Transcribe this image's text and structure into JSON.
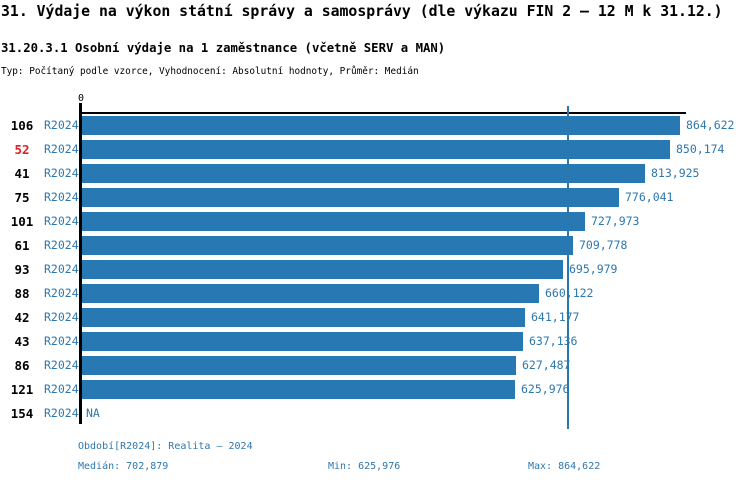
{
  "header": {
    "title": "31. Výdaje na výkon státní správy a samosprávy (dle výkazu FIN 2 – 12 M k 31.12.)",
    "subtitle": "31.20.3.1 Osobní výdaje na 1 zaměstnance (včetně SERV a MAN)",
    "meta": "Typ: Počítaný podle vzorce, Vyhodnocení: Absolutní hodnoty, Průměr: Medián"
  },
  "chart_data": {
    "type": "bar",
    "orientation": "horizontal",
    "axis_origin_label": "0",
    "xlim": [
      0,
      864622
    ],
    "max_value": 864622,
    "median_value": 702879,
    "period": "R2024",
    "rows": [
      {
        "rank": "106",
        "period": "R2024",
        "value": 864622,
        "label": "864,622",
        "highlight": false
      },
      {
        "rank": "52",
        "period": "R2024",
        "value": 850174,
        "label": "850,174",
        "highlight": true
      },
      {
        "rank": "41",
        "period": "R2024",
        "value": 813925,
        "label": "813,925",
        "highlight": false
      },
      {
        "rank": "75",
        "period": "R2024",
        "value": 776041,
        "label": "776,041",
        "highlight": false
      },
      {
        "rank": "101",
        "period": "R2024",
        "value": 727973,
        "label": "727,973",
        "highlight": false
      },
      {
        "rank": "61",
        "period": "R2024",
        "value": 709778,
        "label": "709,778",
        "highlight": false
      },
      {
        "rank": "93",
        "period": "R2024",
        "value": 695979,
        "label": "695,979",
        "highlight": false
      },
      {
        "rank": "88",
        "period": "R2024",
        "value": 660122,
        "label": "660,122",
        "highlight": false
      },
      {
        "rank": "42",
        "period": "R2024",
        "value": 641177,
        "label": "641,177",
        "highlight": false
      },
      {
        "rank": "43",
        "period": "R2024",
        "value": 637136,
        "label": "637,136",
        "highlight": false
      },
      {
        "rank": "86",
        "period": "R2024",
        "value": 627487,
        "label": "627,487",
        "highlight": false
      },
      {
        "rank": "121",
        "period": "R2024",
        "value": 625976,
        "label": "625,976",
        "highlight": false
      },
      {
        "rank": "154",
        "period": "R2024",
        "value": null,
        "label": "NA",
        "highlight": false
      }
    ],
    "colors": {
      "bar": "#2878b4",
      "text_blue": "#2d77b0",
      "highlight_red": "#e02020",
      "axis": "#000000"
    }
  },
  "footer": {
    "period_legend": "Období[R2024]: Realita – 2024",
    "median": "Medián: 702,879",
    "min": "Min: 625,976",
    "max": "Max: 864,622"
  }
}
